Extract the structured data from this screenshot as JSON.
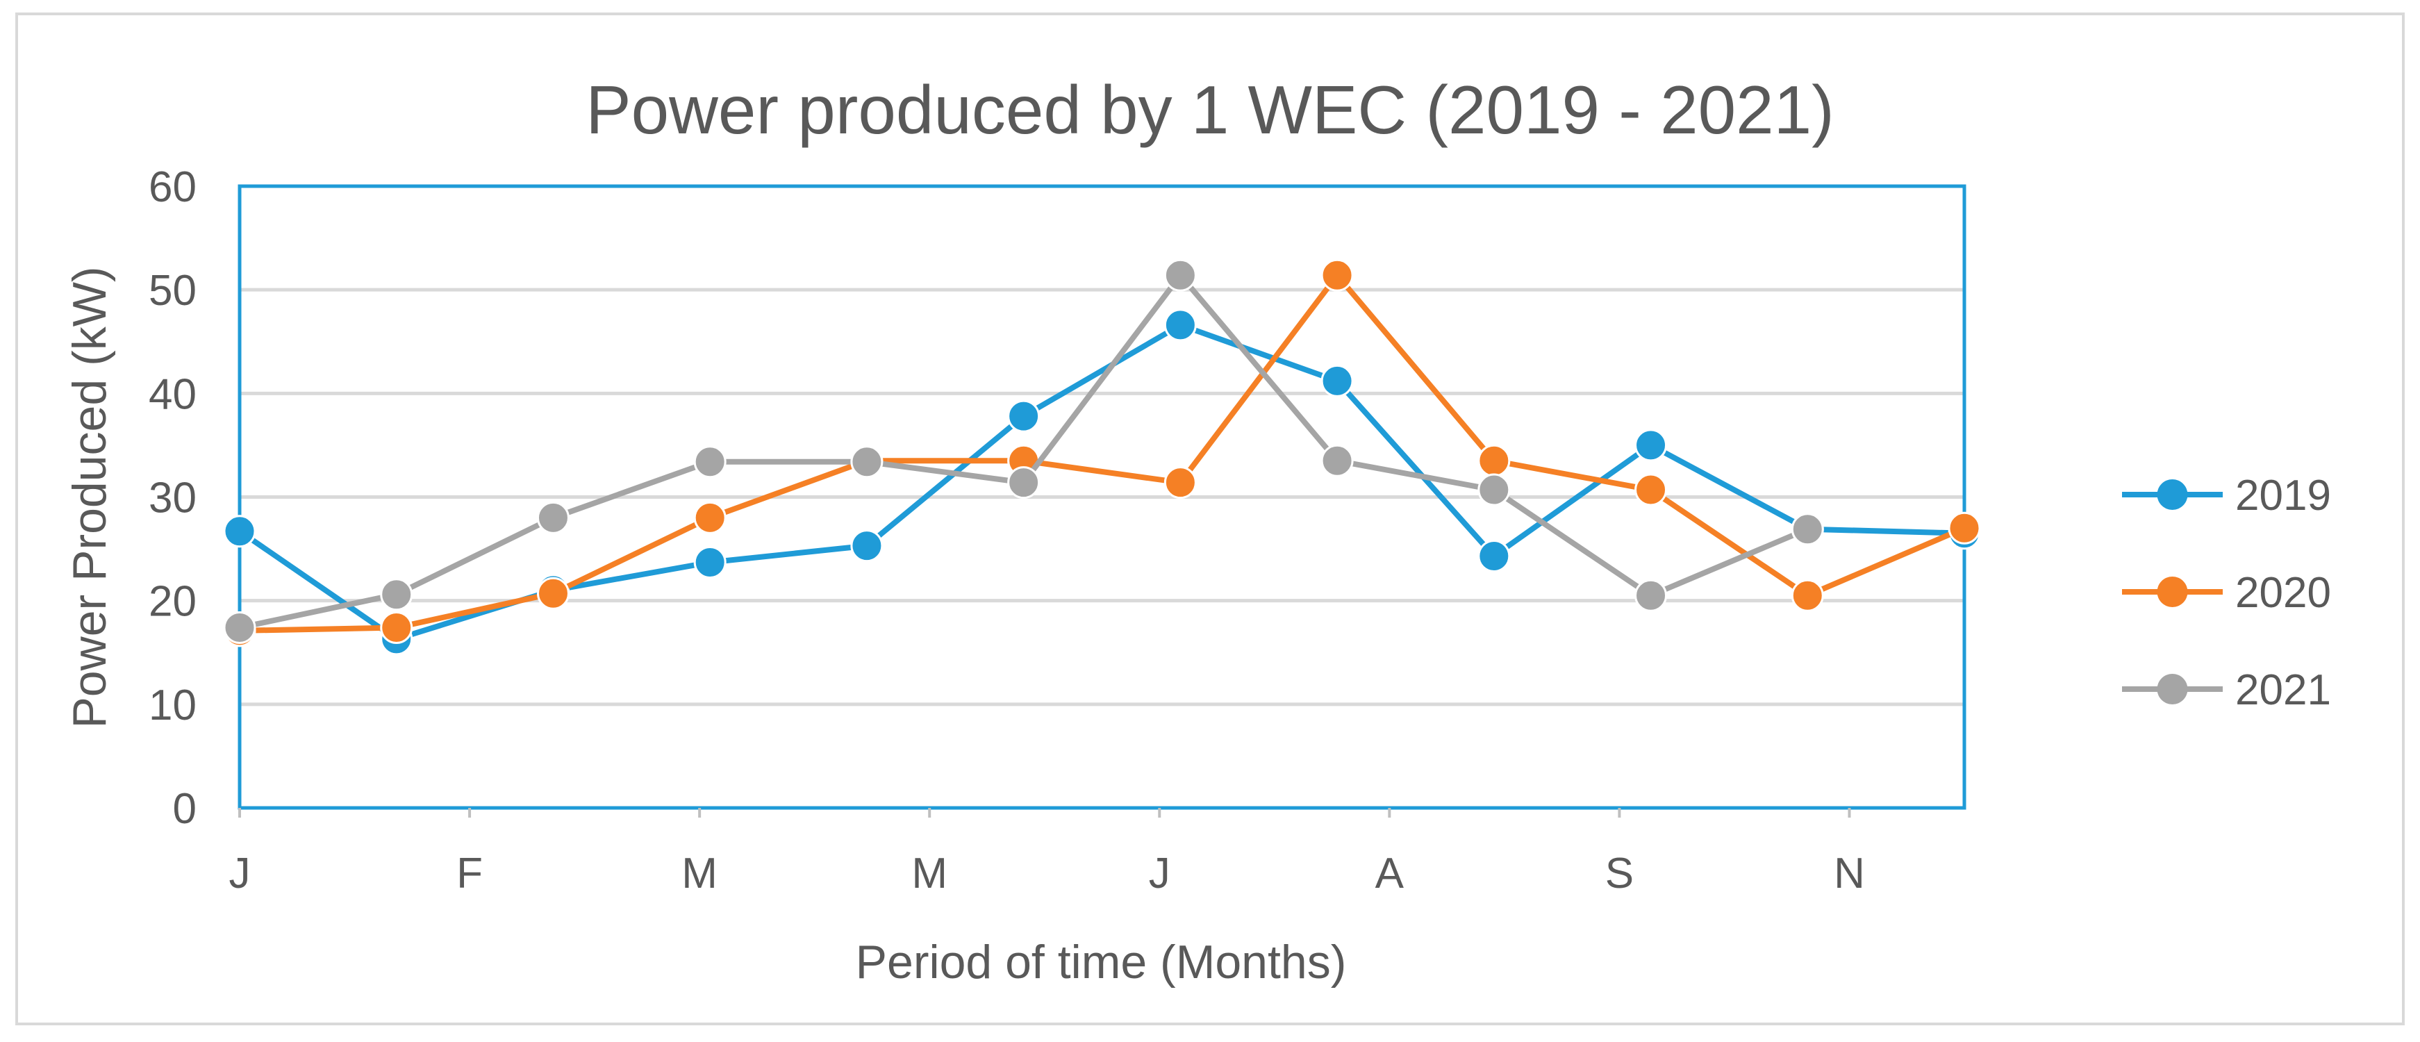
{
  "chart_data": {
    "type": "line",
    "title": "Power produced by 1 WEC (2019 - 2021)",
    "xlabel": "Period of time (Months)",
    "ylabel": "Power Produced (kW)",
    "ylim": [
      0,
      60
    ],
    "yticks": [
      0,
      10,
      20,
      30,
      40,
      50,
      60
    ],
    "x_tick_labels": [
      "J",
      "F",
      "M",
      "M",
      "J",
      "A",
      "S",
      "N"
    ],
    "point_count": 12,
    "grid": true,
    "legend": "right",
    "series": [
      {
        "name": "2019",
        "color": "#1f9bd7",
        "values": [
          26.7,
          16.3,
          21.0,
          23.7,
          25.3,
          37.8,
          46.6,
          41.2,
          24.3,
          35.0,
          26.9,
          26.5
        ]
      },
      {
        "name": "2020",
        "color": "#f58025",
        "values": [
          17.1,
          17.4,
          20.7,
          28.0,
          33.5,
          33.5,
          31.4,
          51.4,
          33.5,
          30.7,
          20.5,
          27.0
        ]
      },
      {
        "name": "2021",
        "color": "#a5a5a5",
        "values": [
          17.4,
          20.6,
          28.0,
          33.4,
          33.4,
          31.4,
          51.4,
          33.5,
          30.7,
          20.5,
          26.9,
          null
        ]
      }
    ]
  }
}
